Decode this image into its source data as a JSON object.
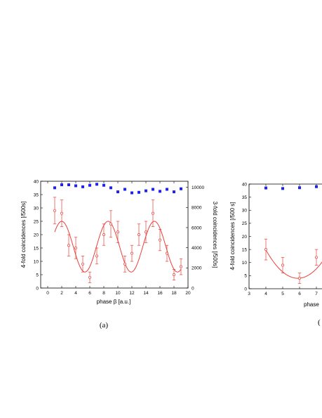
{
  "chart_data": [
    {
      "panel_label": "(a)",
      "type": "scatter",
      "xlabel": "phase β [a.u.]",
      "ylabel_left": "4-fold coincidences [/500s]",
      "ylabel_right": "3-fold coincidences [/500s]",
      "xlim": [
        -1,
        20
      ],
      "ylim_left": [
        0,
        40
      ],
      "ylim_right": [
        0,
        10600
      ],
      "x_ticks": [
        0,
        2,
        4,
        6,
        8,
        10,
        12,
        14,
        16,
        18,
        20
      ],
      "x_tick_labels": [
        "0",
        "2",
        "4",
        "6",
        "8",
        "10",
        "12",
        "14",
        "16",
        "18",
        "20"
      ],
      "y_left_ticks": [
        0,
        5,
        10,
        15,
        20,
        25,
        30,
        35,
        40
      ],
      "y_left_tick_labels": [
        "0",
        "5",
        "10",
        "15",
        "20",
        "25",
        "30",
        "35",
        "40"
      ],
      "y_right_ticks": [
        0,
        2000,
        4000,
        6000,
        8000,
        10000
      ],
      "y_right_tick_labels": [
        "0",
        "2000",
        "4000",
        "6000",
        "8000",
        "10000"
      ],
      "series": [
        {
          "axis": "left",
          "marker": "open-circle",
          "color": "#e8403a",
          "x": [
            1,
            2,
            3,
            4,
            5,
            6,
            7,
            8,
            9,
            10,
            11,
            12,
            13,
            14,
            15,
            16,
            17,
            18,
            19
          ],
          "y": [
            29,
            28,
            16,
            15,
            9,
            4,
            12,
            20,
            24,
            21,
            9,
            13,
            20,
            21,
            28,
            18,
            13,
            5,
            8
          ],
          "err": [
            5,
            5,
            4,
            4,
            3,
            2,
            3,
            4,
            5,
            4,
            3,
            3,
            4,
            4,
            5,
            4,
            3,
            2,
            3
          ]
        },
        {
          "axis": "left",
          "type": "fit-line",
          "color": "#e8403a",
          "x_range": [
            1,
            19
          ],
          "mean": 15.5,
          "amplitude": 9.5,
          "period": 6.6,
          "peak_x": 2.0
        },
        {
          "axis": "right",
          "marker": "filled-square",
          "color": "#1f24e8",
          "x": [
            1,
            2,
            3,
            4,
            5,
            6,
            7,
            8,
            9,
            10,
            11,
            12,
            13,
            14,
            15,
            16,
            17,
            18,
            19
          ],
          "y": [
            9950,
            10250,
            10250,
            10150,
            10050,
            10200,
            10300,
            10200,
            9950,
            9550,
            9800,
            9450,
            9500,
            9650,
            9800,
            9600,
            9800,
            9550,
            9850
          ]
        }
      ]
    },
    {
      "panel_label": "(",
      "type": "scatter",
      "xlabel": "phase",
      "ylabel": "4-fold coincidences [/500 s]",
      "xlim": [
        3,
        8
      ],
      "ylim": [
        0,
        40
      ],
      "x_ticks": [
        3,
        4,
        5,
        6,
        7
      ],
      "x_tick_labels": [
        "3",
        "4",
        "5",
        "6",
        "7"
      ],
      "y_ticks": [
        0,
        5,
        10,
        15,
        20,
        25,
        30,
        35,
        40
      ],
      "y_tick_labels": [
        "0",
        "5",
        "10",
        "15",
        "20",
        "25",
        "30",
        "35",
        "40"
      ],
      "series": [
        {
          "marker": "open-circle",
          "color": "#e8403a",
          "x": [
            4,
            5,
            6,
            7
          ],
          "y": [
            15,
            9,
            4,
            12
          ],
          "err": [
            4,
            3,
            2,
            3
          ]
        },
        {
          "type": "fit-line",
          "color": "#e8403a",
          "x_range": [
            4,
            7.7
          ],
          "vertex_x": 5.9,
          "vertex_y": 4,
          "curvature": 3.0
        },
        {
          "marker": "filled-square",
          "color": "#1f24e8",
          "x": [
            4,
            5,
            6,
            7
          ],
          "y": [
            38.5,
            38.3,
            38.6,
            39
          ]
        }
      ]
    }
  ]
}
